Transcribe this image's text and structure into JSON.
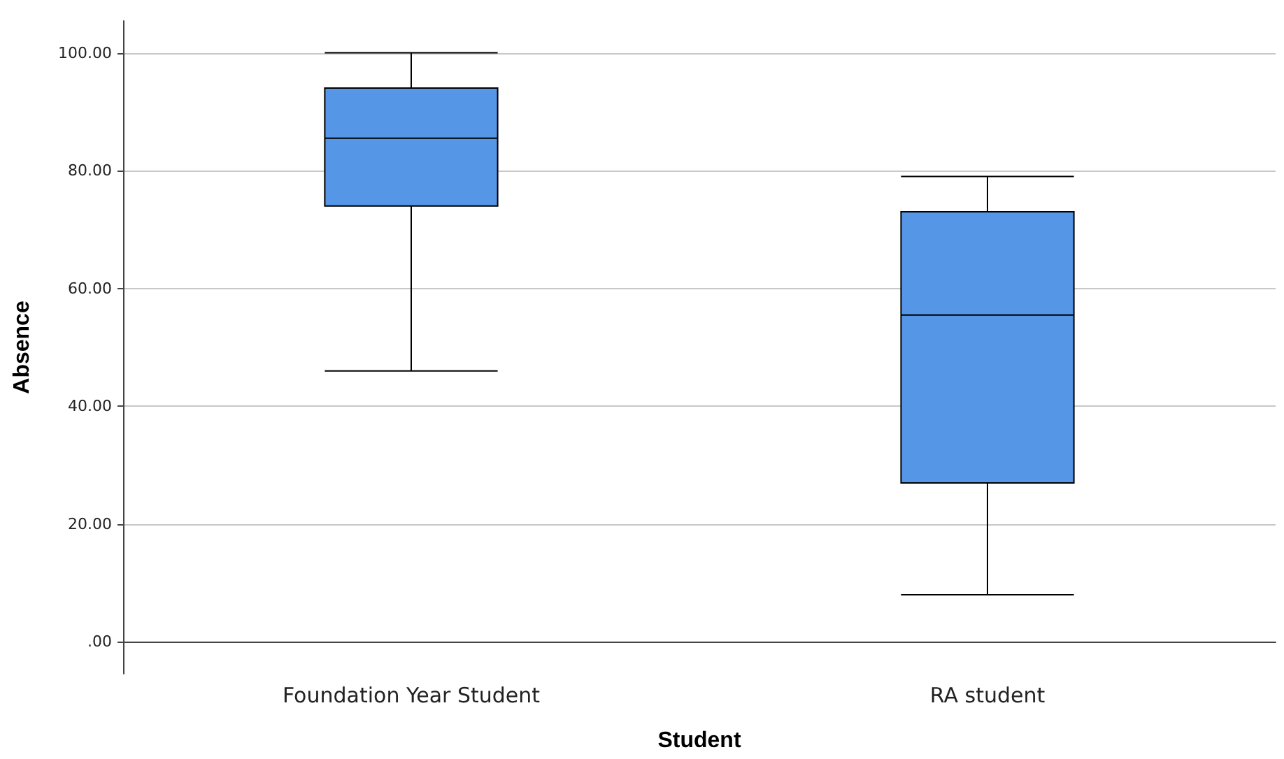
{
  "chart_data": {
    "type": "box",
    "xlabel": "Student",
    "ylabel": "Absence",
    "categories": [
      "Foundation Year Student",
      "RA student"
    ],
    "series": [
      {
        "color": "#5596e6",
        "boxes": [
          {
            "low": 46,
            "q1": 74,
            "median": 85.5,
            "q3": 94,
            "high": 100
          },
          {
            "low": 8,
            "q1": 27,
            "median": 55.5,
            "q3": 73,
            "high": 79
          }
        ]
      }
    ],
    "ylim": [
      -5.4,
      105.4
    ],
    "yticks": [
      {
        "value": 0,
        "label": ".00"
      },
      {
        "value": 20,
        "label": "20.00"
      },
      {
        "value": 40,
        "label": "40.00"
      },
      {
        "value": 60,
        "label": "60.00"
      },
      {
        "value": 80,
        "label": "80.00"
      },
      {
        "value": 100,
        "label": "100.00"
      }
    ],
    "grid": "y"
  }
}
